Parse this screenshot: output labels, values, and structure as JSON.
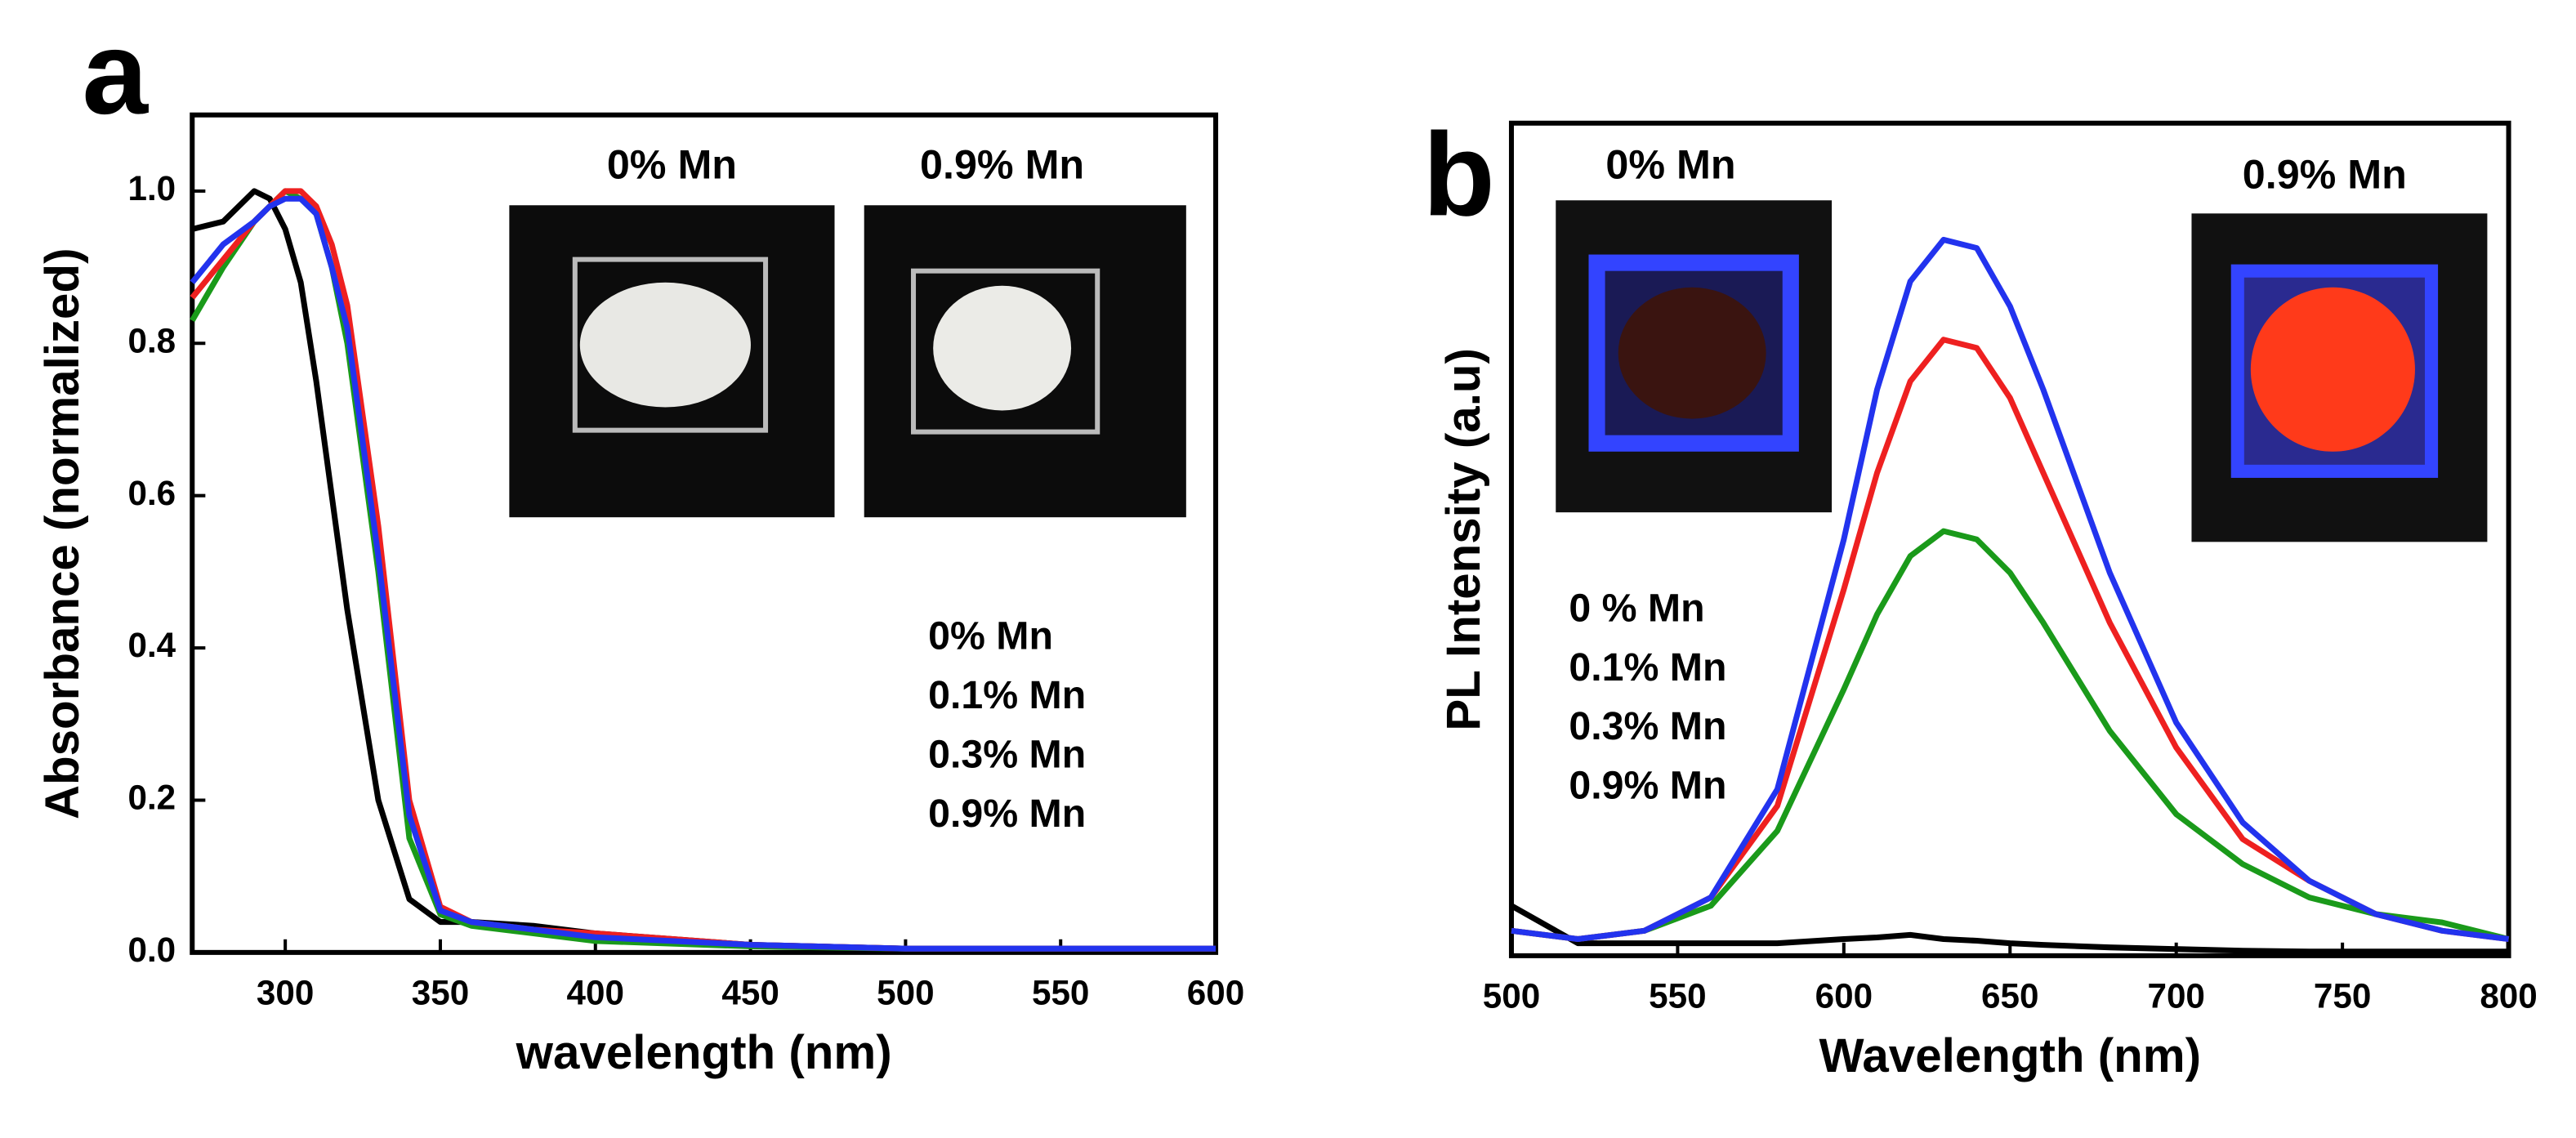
{
  "chart_data": [
    {
      "type": "line",
      "panel_label": "a",
      "x_label": "wavelength (nm)",
      "y_label": "Absorbance (normalized)",
      "annotations": [
        "0% Mn",
        "0.9% Mn"
      ],
      "x": [
        270,
        280,
        290,
        295,
        300,
        305,
        310,
        315,
        320,
        330,
        340,
        350,
        360,
        380,
        400,
        450,
        500,
        550,
        600
      ],
      "series": [
        {
          "name": "0% Mn",
          "color": "#000000",
          "values": [
            0.95,
            0.96,
            1.0,
            0.99,
            0.95,
            0.88,
            0.75,
            0.6,
            0.45,
            0.2,
            0.07,
            0.04,
            0.04,
            0.035,
            0.025,
            0.01,
            0.005,
            0.005,
            0.005
          ]
        },
        {
          "name": "0.1% Mn",
          "color": "#1a9a1a",
          "values": [
            0.83,
            0.9,
            0.96,
            0.98,
            1.0,
            0.99,
            0.97,
            0.9,
            0.8,
            0.5,
            0.15,
            0.05,
            0.035,
            0.025,
            0.015,
            0.008,
            0.005,
            0.005,
            0.005
          ]
        },
        {
          "name": "0.3% Mn",
          "color": "#ee2020",
          "values": [
            0.86,
            0.91,
            0.96,
            0.98,
            1.0,
            1.0,
            0.98,
            0.93,
            0.85,
            0.56,
            0.2,
            0.06,
            0.04,
            0.03,
            0.025,
            0.01,
            0.005,
            0.005,
            0.005
          ]
        },
        {
          "name": "0.9% Mn",
          "color": "#2233ee",
          "values": [
            0.88,
            0.93,
            0.96,
            0.98,
            0.99,
            0.99,
            0.97,
            0.9,
            0.82,
            0.52,
            0.18,
            0.055,
            0.04,
            0.03,
            0.02,
            0.01,
            0.005,
            0.005,
            0.005
          ]
        }
      ],
      "xlim": [
        270,
        600
      ],
      "xticks": [
        300,
        350,
        400,
        450,
        500,
        550,
        600
      ],
      "ylim": [
        0,
        1.1
      ],
      "yticks": [
        {
          "value": 0,
          "label": "0.0"
        },
        {
          "value": 0.2,
          "label": "0.2"
        },
        {
          "value": 0.4,
          "label": "0.4"
        },
        {
          "value": 0.6,
          "label": "0.6"
        },
        {
          "value": 0.8,
          "label": "0.8"
        },
        {
          "value": 1,
          "label": "1.0"
        }
      ],
      "legend": "right"
    },
    {
      "type": "line",
      "panel_label": "b",
      "x_label": "Wavelength (nm)",
      "y_label": "PL Intensity (a.u)",
      "annotations": [
        "0% Mn",
        "0.9% Mn"
      ],
      "x": [
        500,
        520,
        540,
        560,
        580,
        600,
        610,
        620,
        630,
        640,
        650,
        660,
        680,
        700,
        720,
        740,
        760,
        780,
        800
      ],
      "series": [
        {
          "name": "0 % Mn",
          "color": "#000000",
          "values": [
            0.06,
            0.015,
            0.015,
            0.015,
            0.015,
            0.02,
            0.022,
            0.025,
            0.02,
            0.018,
            0.015,
            0.013,
            0.01,
            0.008,
            0.006,
            0.005,
            0.005,
            0.005,
            0.005
          ]
        },
        {
          "name": "0.1% Mn",
          "color": "#1a9a1a",
          "values": [
            0.03,
            0.02,
            0.03,
            0.06,
            0.15,
            0.32,
            0.41,
            0.48,
            0.51,
            0.5,
            0.46,
            0.4,
            0.27,
            0.17,
            0.11,
            0.07,
            0.05,
            0.04,
            0.02
          ]
        },
        {
          "name": "0.3% Mn",
          "color": "#ee2020",
          "values": [
            0.03,
            0.02,
            0.03,
            0.07,
            0.18,
            0.44,
            0.58,
            0.69,
            0.74,
            0.73,
            0.67,
            0.58,
            0.4,
            0.25,
            0.14,
            0.09,
            0.05,
            0.03,
            0.02
          ]
        },
        {
          "name": "0.9% Mn",
          "color": "#2233ee",
          "values": [
            0.03,
            0.02,
            0.03,
            0.07,
            0.2,
            0.5,
            0.68,
            0.81,
            0.86,
            0.85,
            0.78,
            0.68,
            0.46,
            0.28,
            0.16,
            0.09,
            0.05,
            0.03,
            0.02
          ]
        }
      ],
      "xlim": [
        500,
        800
      ],
      "xticks": [
        500,
        550,
        600,
        650,
        700,
        750,
        800
      ],
      "ylim": [
        0,
        1
      ],
      "legend": "left"
    }
  ]
}
